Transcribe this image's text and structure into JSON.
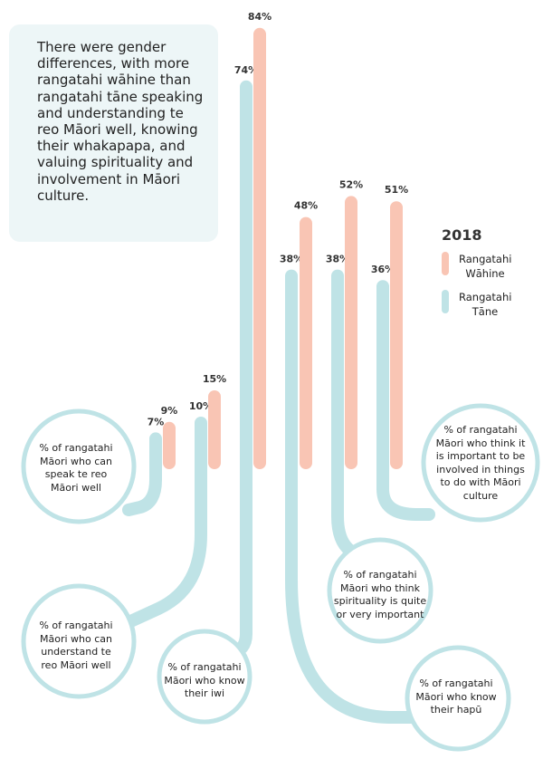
{
  "note": {
    "text": "There were gender differences, with more rangatahi wāhine than rangatahi tāne speaking and understanding te reo Māori well, knowing their whakapapa, and valuing spirituality and involvement in Māori culture."
  },
  "colors": {
    "wahine": "#f9c5b4",
    "tane": "#bfe3e6"
  },
  "chart_data": {
    "type": "bar",
    "title": "2018",
    "series": [
      {
        "name": "Rangatahi Tāne",
        "values": [
          7,
          10,
          74,
          38,
          38,
          36
        ]
      },
      {
        "name": "Rangatahi Wāhine",
        "values": [
          9,
          15,
          84,
          48,
          52,
          51
        ]
      }
    ],
    "categories": [
      "% of rangatahi Māori who can speak te reo Māori well",
      "% of rangatahi Māori who can understand te reo Māori well",
      "% of rangatahi Māori who know their iwi",
      "% of rangatahi Māori who know their hapū",
      "% of rangatahi Māori who think spirituality is quite or very important",
      "% of rangatahi Māori who think it is important to be involved in things to do with Māori culture"
    ],
    "value_labels": {
      "tane": [
        "7%",
        "10%",
        "74%",
        "38%",
        "38%",
        "36%"
      ],
      "wahine": [
        "9%",
        "15%",
        "84%",
        "48%",
        "52%",
        "51%"
      ]
    },
    "legend": {
      "title": "2018",
      "wahine_label": "Rangatahi Wāhine",
      "tane_label": "Rangatahi Tāne"
    }
  }
}
